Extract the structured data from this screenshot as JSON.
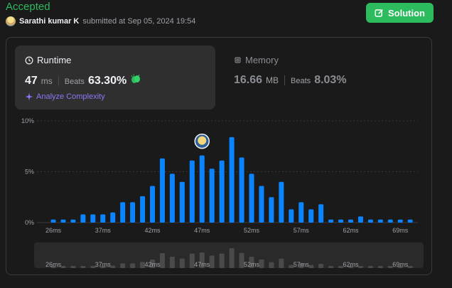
{
  "header": {
    "status": "Accepted",
    "user": "Sarathi kumar K",
    "submitted_text": "submitted at Sep 05, 2024 19:54",
    "solution_label": "Solution"
  },
  "runtime": {
    "title": "Runtime",
    "value": "47",
    "unit": "ms",
    "beats_label": "Beats",
    "beats_value": "63.30%",
    "analyze_label": "Analyze Complexity"
  },
  "memory": {
    "title": "Memory",
    "value": "16.66",
    "unit": "MB",
    "beats_label": "Beats",
    "beats_value": "8.03%"
  },
  "colors": {
    "accent_green": "#2cbb5d",
    "bar_blue": "#0a84ff",
    "analyze_purple": "#8a7af5"
  },
  "chart_data": {
    "type": "bar",
    "ylim": [
      0,
      10
    ],
    "y_ticks": [
      "10%",
      "5%",
      "0%"
    ],
    "y_tick_values": [
      10,
      5,
      0
    ],
    "x_tick_labels": [
      "26ms",
      "37ms",
      "42ms",
      "47ms",
      "52ms",
      "57ms",
      "62ms",
      "69ms"
    ],
    "x_tick_indices": [
      0,
      5,
      10,
      15,
      20,
      25,
      30,
      35
    ],
    "highlight_index": 15,
    "values": [
      0.3,
      0.3,
      0.3,
      0.8,
      0.8,
      0.8,
      1.0,
      2.0,
      2.0,
      2.6,
      3.6,
      6.3,
      4.8,
      4.0,
      6.1,
      6.6,
      5.3,
      6.1,
      8.4,
      6.4,
      4.8,
      3.6,
      2.5,
      4.0,
      1.3,
      2.0,
      1.3,
      1.8,
      0.3,
      0.3,
      0.3,
      0.6,
      0.3,
      0.3,
      0.3,
      0.3,
      0.3
    ]
  }
}
